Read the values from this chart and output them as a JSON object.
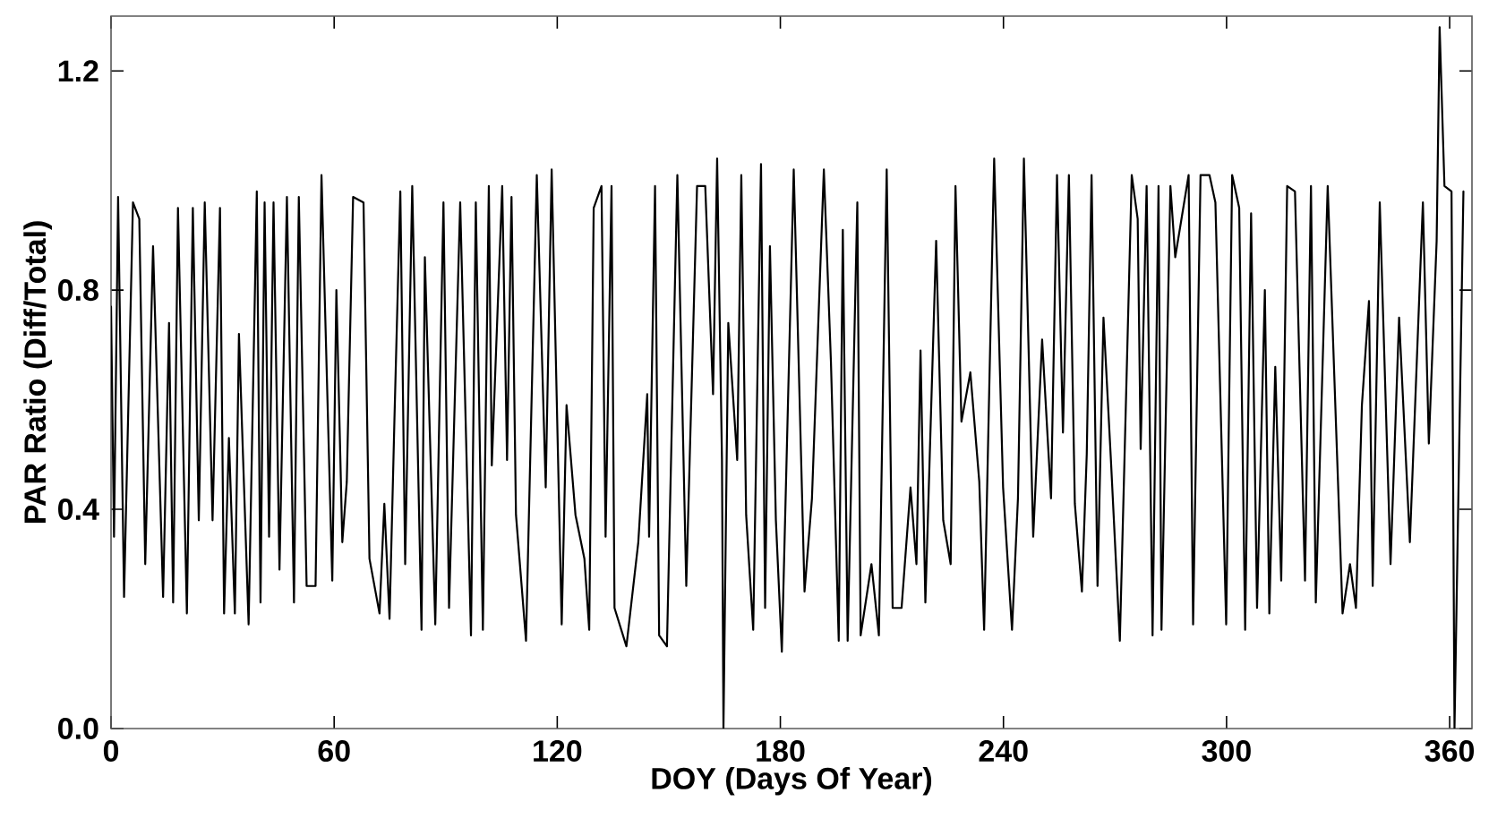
{
  "chart_data": {
    "type": "line",
    "xlabel": "DOY (Days Of Year)",
    "ylabel": "PAR Ratio (Diff/Total)",
    "xlim": [
      0,
      366
    ],
    "ylim": [
      0,
      1.3
    ],
    "xticks": [
      0,
      60,
      120,
      180,
      240,
      300,
      360
    ],
    "yticks": [
      {
        "value": 0,
        "label": "0.0"
      },
      {
        "value": 0.4,
        "label": "0.4"
      },
      {
        "value": 0.8,
        "label": "0.8"
      },
      {
        "value": 1.2,
        "label": "1.2"
      }
    ],
    "grid": false,
    "marker": "none",
    "line_style": "solid",
    "series": [
      {
        "color": "#000000",
        "x": [
          0,
          0.8,
          1.9,
          3.5,
          5.9,
          7.6,
          9.2,
          11.3,
          14.0,
          15.6,
          16.7,
          18.0,
          20.4,
          22.0,
          23.6,
          25.2,
          27.3,
          29.3,
          30.4,
          31.7,
          33.3,
          34.4,
          37.0,
          39.2,
          40.2,
          41.3,
          42.5,
          43.7,
          45.3,
          47.3,
          49.2,
          50.5,
          52.6,
          55.0,
          56.6,
          59.5,
          60.6,
          62.2,
          63.4,
          65.1,
          67.9,
          69.5,
          72.2,
          73.5,
          74.9,
          76.2,
          77.8,
          79.1,
          81.0,
          83.5,
          84.4,
          87.2,
          89.4,
          90.9,
          93.9,
          96.8,
          98.1,
          100.0,
          101.6,
          102.4,
          105.2,
          106.5,
          107.7,
          108.9,
          111.6,
          114.5,
          116.9,
          118.5,
          121.2,
          122.5,
          124.9,
          127.3,
          128.6,
          129.8,
          131.9,
          133.0,
          134.6,
          135.4,
          138.6,
          141.8,
          144.2,
          144.7,
          146.3,
          147.4,
          149.5,
          152.3,
          154.7,
          157.6,
          159.8,
          161.9,
          163.0,
          164.3,
          164.7,
          166.0,
          168.4,
          169.5,
          170.8,
          172.7,
          174.8,
          175.9,
          177.2,
          178.8,
          180.4,
          183.6,
          186.5,
          188.5,
          191.7,
          193.6,
          195.7,
          196.8,
          198.1,
          200.7,
          201.6,
          204.5,
          206.5,
          208.6,
          210.2,
          212.6,
          215.0,
          216.6,
          217.7,
          219.0,
          221.9,
          223.8,
          225.8,
          227.1,
          228.7,
          231.1,
          233.5,
          234.8,
          237.5,
          239.9,
          242.3,
          243.9,
          245.5,
          248.0,
          250.4,
          252.8,
          254.4,
          256.0,
          257.6,
          259.2,
          261.1,
          262.4,
          263.7,
          265.3,
          266.9,
          268.9,
          271.3,
          274.5,
          276.1,
          276.9,
          278.5,
          280.1,
          281.7,
          282.5,
          284.9,
          286.2,
          289.8,
          291.0,
          293.0,
          295.4,
          297.0,
          299.9,
          301.5,
          303.4,
          305.0,
          306.6,
          308.2,
          310.3,
          311.5,
          313.1,
          314.7,
          316.3,
          318.4,
          321.1,
          322.7,
          324.0,
          327.2,
          331.2,
          333.2,
          334.8,
          336.4,
          338.3,
          339.3,
          341.2,
          344.1,
          346.4,
          349.3,
          352.8,
          354.4,
          356.5,
          357.3,
          358.6,
          360.5,
          361.3,
          363.7
        ],
        "values": [
          0.77,
          0.35,
          0.97,
          0.24,
          0.96,
          0.93,
          0.3,
          0.88,
          0.24,
          0.74,
          0.23,
          0.95,
          0.21,
          0.95,
          0.38,
          0.96,
          0.38,
          0.95,
          0.21,
          0.53,
          0.21,
          0.72,
          0.19,
          0.98,
          0.23,
          0.96,
          0.35,
          0.96,
          0.29,
          0.97,
          0.23,
          0.97,
          0.26,
          0.26,
          1.01,
          0.27,
          0.8,
          0.34,
          0.45,
          0.97,
          0.96,
          0.31,
          0.21,
          0.41,
          0.2,
          0.56,
          0.98,
          0.3,
          0.99,
          0.18,
          0.86,
          0.19,
          0.96,
          0.22,
          0.96,
          0.17,
          0.96,
          0.18,
          0.99,
          0.48,
          0.99,
          0.49,
          0.97,
          0.39,
          0.16,
          1.01,
          0.44,
          1.02,
          0.19,
          0.59,
          0.39,
          0.31,
          0.18,
          0.95,
          0.99,
          0.35,
          0.99,
          0.22,
          0.15,
          0.34,
          0.61,
          0.35,
          0.99,
          0.17,
          0.15,
          1.01,
          0.26,
          0.99,
          0.99,
          0.61,
          1.04,
          0.49,
          0.0,
          0.74,
          0.49,
          1.01,
          0.39,
          0.18,
          1.03,
          0.22,
          0.88,
          0.38,
          0.14,
          1.02,
          0.25,
          0.42,
          1.02,
          0.67,
          0.16,
          0.91,
          0.16,
          0.96,
          0.17,
          0.3,
          0.17,
          1.02,
          0.22,
          0.22,
          0.44,
          0.3,
          0.69,
          0.23,
          0.89,
          0.38,
          0.3,
          0.99,
          0.56,
          0.65,
          0.45,
          0.18,
          1.04,
          0.44,
          0.18,
          0.42,
          1.04,
          0.35,
          0.71,
          0.42,
          1.01,
          0.54,
          1.01,
          0.41,
          0.25,
          0.5,
          1.01,
          0.26,
          0.75,
          0.49,
          0.16,
          1.01,
          0.93,
          0.51,
          0.99,
          0.17,
          0.99,
          0.18,
          0.99,
          0.86,
          1.01,
          0.19,
          1.01,
          1.01,
          0.96,
          0.19,
          1.01,
          0.95,
          0.18,
          0.94,
          0.22,
          0.8,
          0.21,
          0.66,
          0.27,
          0.99,
          0.98,
          0.27,
          0.99,
          0.23,
          0.99,
          0.21,
          0.3,
          0.22,
          0.59,
          0.78,
          0.26,
          0.96,
          0.3,
          0.75,
          0.34,
          0.96,
          0.52,
          0.89,
          1.28,
          0.99,
          0.98,
          0.0,
          0.98
        ]
      }
    ]
  }
}
